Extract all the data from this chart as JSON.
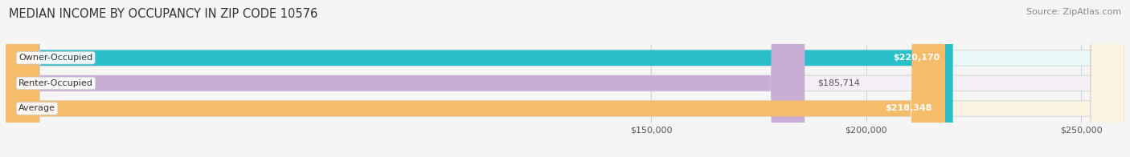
{
  "title": "MEDIAN INCOME BY OCCUPANCY IN ZIP CODE 10576",
  "source": "Source: ZipAtlas.com",
  "categories": [
    "Owner-Occupied",
    "Renter-Occupied",
    "Average"
  ],
  "values": [
    220170,
    185714,
    218348
  ],
  "labels": [
    "$220,170",
    "$185,714",
    "$218,348"
  ],
  "bar_colors": [
    "#2bbfc9",
    "#c8add4",
    "#f5bc6a"
  ],
  "bar_bg_colors": [
    "#eaf8fa",
    "#f4eef7",
    "#fdf3e3"
  ],
  "label_inside": [
    true,
    false,
    true
  ],
  "label_colors_inside": [
    "#ffffff",
    "#555555",
    "#ffffff"
  ],
  "xlim_min": 0,
  "xlim_max": 260000,
  "xticks": [
    150000,
    200000,
    250000
  ],
  "xtick_labels": [
    "$150,000",
    "$200,000",
    "$250,000"
  ],
  "background_color": "#f5f5f5",
  "title_fontsize": 10.5,
  "source_fontsize": 8,
  "label_fontsize": 8,
  "cat_fontsize": 8,
  "tick_fontsize": 8
}
